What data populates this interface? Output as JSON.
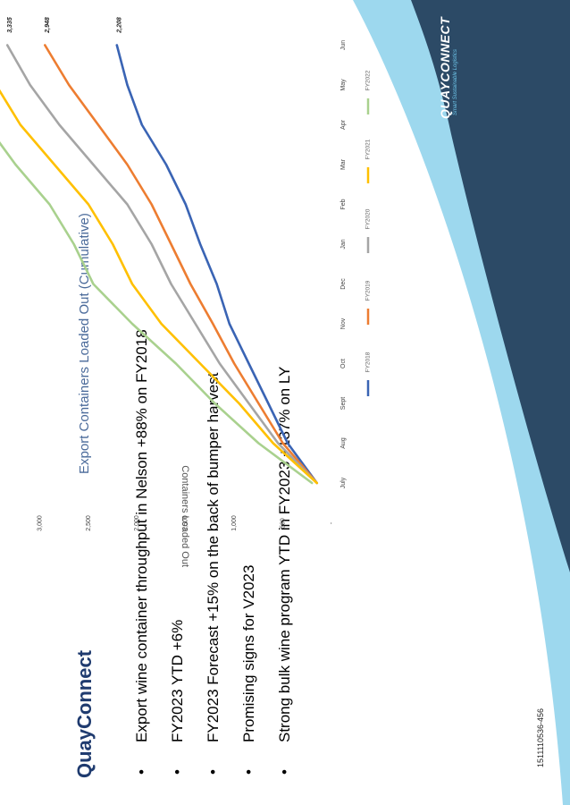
{
  "slide": {
    "title": "QuayConnect",
    "bullets": [
      "Export wine container throughput in Nelson +88% on FY2018",
      "FY2023 YTD +6%",
      "FY2023 Forecast +15% on the back of bumper harvest",
      "Promising signs for V2023",
      "Strong bulk wine program YTD in FY2023 +137% on LY"
    ],
    "doc_id": "1511110536-456"
  },
  "logo": {
    "name": "QUAYCONNECT",
    "tagline": "Smart Sustainable Logistics"
  },
  "colors": {
    "FY2018": "#3a64b4",
    "FY2019": "#ed7d31",
    "FY2020": "#a5a5a5",
    "FY2021": "#ffc000",
    "FY2022": "#a9d18e",
    "title": "#1f3b6f",
    "chart_title": "#4a6a9a",
    "wave_light": "#4db8e0",
    "wave_dark": "#2c4a66"
  },
  "chart_data": {
    "type": "line",
    "title": "Export Containers Loaded Out (Cumulative)",
    "ylabel": "Containers Loaded Out",
    "xlabel": "",
    "categories": [
      "July",
      "Aug",
      "Sept",
      "Oct",
      "Nov",
      "Dec",
      "Jan",
      "Feb",
      "Mar",
      "Apr",
      "May",
      "Jun"
    ],
    "ylim": [
      0,
      4500
    ],
    "yticks": [
      0,
      500,
      1000,
      1500,
      2000,
      2500,
      3000,
      3500,
      4000,
      4500
    ],
    "ytick_labels": [
      "-",
      "500",
      "1,000",
      "1,500",
      "2,000",
      "2,500",
      "3,000",
      "3,500",
      "4,000",
      "4,500"
    ],
    "grid": false,
    "legend_position": "bottom",
    "series": [
      {
        "name": "FY2018",
        "values": [
          150,
          450,
          650,
          850,
          1050,
          1180,
          1350,
          1500,
          1700,
          1950,
          2100,
          2208
        ],
        "end_label": "2,208"
      },
      {
        "name": "FY2019",
        "values": [
          150,
          500,
          750,
          1000,
          1220,
          1450,
          1650,
          1850,
          2100,
          2400,
          2700,
          2948
        ],
        "end_label": "2,948"
      },
      {
        "name": "FY2020",
        "values": [
          150,
          550,
          850,
          1150,
          1400,
          1650,
          1850,
          2100,
          2450,
          2800,
          3100,
          3335
        ],
        "end_label": "3,335"
      },
      {
        "name": "FY2021",
        "values": [
          150,
          600,
          950,
          1350,
          1750,
          2050,
          2250,
          2500,
          2850,
          3200,
          3450,
          3631
        ],
        "end_label": "3,631"
      },
      {
        "name": "FY2022",
        "values": [
          200,
          750,
          1200,
          1600,
          2050,
          2450,
          2650,
          2900,
          3250,
          3550,
          3850,
          4143
        ],
        "end_label": "4,143"
      }
    ]
  }
}
